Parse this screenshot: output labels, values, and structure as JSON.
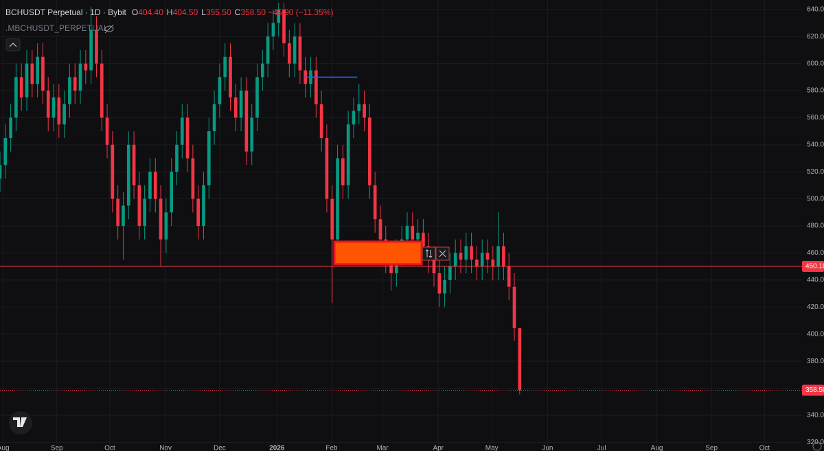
{
  "chart_data": {
    "type": "candlestick",
    "title": "BCHUSDT Perpetual · 1D · Bybit",
    "ohlc_legend": [
      {
        "key": "O",
        "value": "404.40"
      },
      {
        "key": "H",
        "value": "404.50"
      },
      {
        "key": "L",
        "value": "355.50"
      },
      {
        "key": "C",
        "value": "358.50"
      }
    ],
    "change": "−45.90 (−11.35%)",
    "indicator": ".MBCHUSDT_PERPETUAL",
    "up_color": "#089981",
    "down_color": "#f23645",
    "open": [
      515,
      525,
      545,
      560,
      590,
      575,
      600,
      585,
      605,
      580,
      560,
      575,
      555,
      570,
      590,
      580,
      600,
      595,
      625,
      600,
      560,
      540,
      500,
      480,
      495,
      540,
      510,
      480,
      500,
      520,
      500,
      470,
      490,
      520,
      540,
      560,
      530,
      500,
      480,
      510,
      550,
      570,
      590,
      605,
      575,
      560,
      580,
      535,
      560,
      590,
      600,
      620,
      630,
      640,
      615,
      600,
      620,
      595,
      585,
      595,
      570,
      545,
      500,
      470,
      530,
      510,
      555,
      565,
      570,
      560,
      510,
      485,
      470,
      455,
      445,
      460,
      470,
      480,
      470,
      475,
      465,
      455,
      445,
      430,
      440,
      450,
      460,
      455,
      465,
      455,
      450,
      460,
      455,
      450,
      465,
      450,
      435,
      404.4
    ],
    "high": [
      535,
      555,
      570,
      600,
      600,
      610,
      610,
      615,
      615,
      590,
      585,
      585,
      580,
      600,
      600,
      610,
      610,
      642,
      635,
      610,
      570,
      550,
      510,
      505,
      550,
      550,
      520,
      510,
      530,
      530,
      510,
      500,
      530,
      550,
      570,
      570,
      540,
      510,
      520,
      560,
      580,
      600,
      615,
      615,
      585,
      590,
      590,
      570,
      600,
      610,
      630,
      640,
      645,
      645,
      625,
      630,
      630,
      605,
      605,
      605,
      580,
      555,
      510,
      540,
      540,
      565,
      575,
      585,
      580,
      570,
      520,
      495,
      480,
      465,
      470,
      480,
      490,
      490,
      485,
      485,
      475,
      465,
      455,
      450,
      460,
      470,
      470,
      475,
      475,
      465,
      470,
      470,
      465,
      490,
      475,
      460,
      445,
      404.5
    ],
    "low": [
      505,
      515,
      535,
      550,
      565,
      565,
      575,
      575,
      570,
      550,
      550,
      545,
      545,
      560,
      570,
      570,
      585,
      585,
      590,
      550,
      530,
      490,
      470,
      455,
      485,
      500,
      470,
      470,
      490,
      490,
      450,
      460,
      480,
      510,
      530,
      520,
      490,
      470,
      470,
      500,
      540,
      560,
      580,
      565,
      550,
      550,
      525,
      525,
      550,
      580,
      590,
      610,
      620,
      605,
      590,
      590,
      585,
      575,
      575,
      560,
      535,
      490,
      423,
      460,
      500,
      500,
      545,
      555,
      550,
      500,
      475,
      460,
      445,
      432,
      435,
      450,
      460,
      460,
      460,
      455,
      445,
      435,
      420,
      420,
      430,
      440,
      445,
      445,
      445,
      440,
      440,
      445,
      440,
      440,
      440,
      425,
      395,
      355.5
    ],
    "close": [
      525,
      545,
      560,
      590,
      575,
      600,
      585,
      605,
      580,
      560,
      575,
      555,
      570,
      590,
      580,
      600,
      595,
      625,
      600,
      560,
      540,
      500,
      480,
      495,
      540,
      510,
      480,
      500,
      520,
      500,
      470,
      490,
      520,
      540,
      560,
      530,
      500,
      480,
      510,
      550,
      570,
      590,
      605,
      575,
      560,
      580,
      535,
      560,
      590,
      600,
      620,
      630,
      640,
      615,
      600,
      620,
      595,
      585,
      595,
      570,
      545,
      500,
      470,
      530,
      510,
      555,
      565,
      570,
      560,
      510,
      485,
      470,
      455,
      445,
      460,
      470,
      480,
      470,
      475,
      465,
      455,
      445,
      430,
      440,
      450,
      460,
      455,
      465,
      455,
      450,
      460,
      455,
      450,
      465,
      450,
      435,
      404.4,
      358.5
    ],
    "xlim": [
      0,
      149.7
    ],
    "xticks": [
      {
        "value": 0.6,
        "label": "Aug"
      },
      {
        "value": 10.6,
        "label": "Sep"
      },
      {
        "value": 20.5,
        "label": "Oct"
      },
      {
        "value": 30.9,
        "label": "Nov"
      },
      {
        "value": 41,
        "label": "Dec"
      },
      {
        "value": 51.7,
        "label": "2026"
      },
      {
        "value": 61.9,
        "label": "Feb"
      },
      {
        "value": 71.4,
        "label": "Mar"
      },
      {
        "value": 81.8,
        "label": "Apr"
      },
      {
        "value": 91.8,
        "label": "May"
      },
      {
        "value": 102.2,
        "label": "Jun"
      },
      {
        "value": 112.3,
        "label": "Jul"
      },
      {
        "value": 122.6,
        "label": "Aug"
      },
      {
        "value": 132.8,
        "label": "Sep"
      },
      {
        "value": 142.7,
        "label": "Oct"
      }
    ],
    "ylim": [
      313.58,
      647
    ],
    "yticks": [
      {
        "value": 320,
        "label": "320.00"
      },
      {
        "value": 340,
        "label": "340.00"
      },
      {
        "value": 360,
        "label": "360.00"
      },
      {
        "value": 380,
        "label": "380.00"
      },
      {
        "value": 400,
        "label": "400.00"
      },
      {
        "value": 420,
        "label": "420.00"
      },
      {
        "value": 440,
        "label": "440.00"
      },
      {
        "value": 460,
        "label": "460.00"
      },
      {
        "value": 480,
        "label": "480.00"
      },
      {
        "value": 500,
        "label": "500.00"
      },
      {
        "value": 520,
        "label": "520.00"
      },
      {
        "value": 540,
        "label": "540.00"
      },
      {
        "value": 560,
        "label": "560.00"
      },
      {
        "value": 580,
        "label": "580.00"
      },
      {
        "value": 600,
        "label": "600.00"
      },
      {
        "value": 620,
        "label": "620.00"
      },
      {
        "value": 640,
        "label": "640.00"
      }
    ],
    "grid": true,
    "horizontal_line": {
      "value": 450.1,
      "label": "450.10",
      "color": "#f23645"
    },
    "last_price": {
      "value": 358.5,
      "label": "358.50",
      "color": "#f23645"
    },
    "trend_line": {
      "value": 590,
      "x": [
        56.8,
        66.7
      ],
      "color": "#2962ff"
    }
  }
}
